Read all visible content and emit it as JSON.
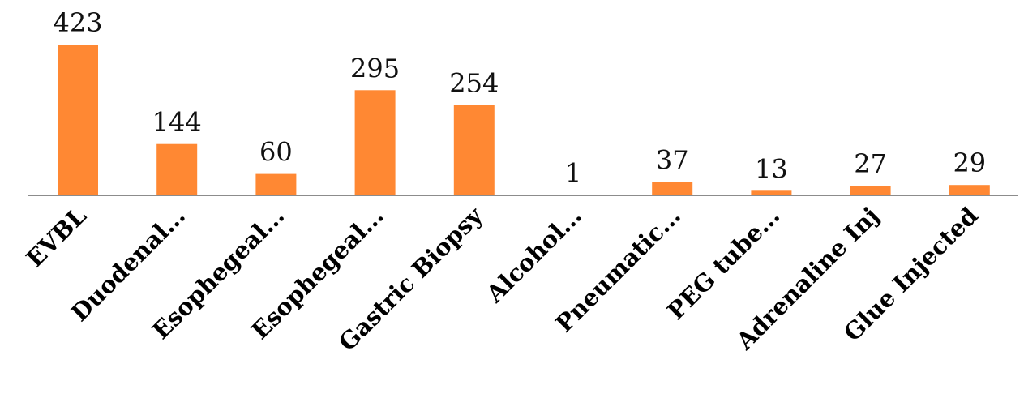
{
  "chart_data": {
    "type": "bar",
    "title": "",
    "xlabel": "",
    "ylabel": "",
    "categories": [
      "EVBL",
      "Duodenal…",
      "Esophegeal…",
      "Esophegeal…",
      "Gastric Biopsy",
      "Alcohol…",
      "Pneumatic…",
      "PEG tube…",
      "Adrenaline Inj",
      "Glue Injected"
    ],
    "values": [
      423,
      144,
      60,
      295,
      254,
      1,
      37,
      13,
      27,
      29
    ],
    "value_labels": [
      "423",
      "144",
      "60",
      "295",
      "254",
      "1",
      "37",
      "13",
      "27",
      "29"
    ],
    "ylim": [
      0,
      423
    ],
    "grid": false,
    "legend": "none",
    "bar_color": "#ff8833",
    "axis_color": "#8c8c8c"
  }
}
